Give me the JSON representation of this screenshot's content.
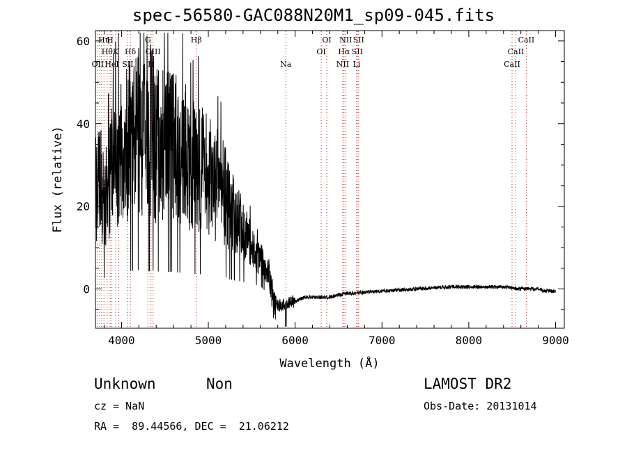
{
  "chart_data": {
    "type": "line",
    "title": "spec-56580-GAC088N20M1_sp09-045.fits",
    "xlabel": "Wavelength (Å)",
    "ylabel": "Flux (relative)",
    "xlim": [
      3700,
      9100
    ],
    "ylim": [
      -9.5,
      62.5
    ],
    "x_ticks": [
      4000,
      5000,
      6000,
      7000,
      8000,
      9000
    ],
    "y_ticks": [
      0,
      20,
      40,
      60
    ],
    "x_tick_labels": [
      "4000",
      "5000",
      "6000",
      "7000",
      "8000",
      "9000"
    ],
    "y_tick_labels": [
      "0",
      "20",
      "40",
      "60"
    ],
    "grid": false,
    "series": [
      {
        "x": [
          3700,
          3750,
          3800,
          3850,
          3900,
          3950,
          4000,
          4050,
          4100,
          4150,
          4200,
          4250,
          4300,
          4340,
          4400,
          4450,
          4500,
          4550,
          4600,
          4650,
          4700,
          4750,
          4800,
          4850,
          4900,
          4950,
          5000,
          5050,
          5100,
          5150,
          5200,
          5250,
          5300,
          5350,
          5400,
          5450,
          5500,
          5550,
          5600,
          5650,
          5700,
          5750,
          5800,
          5850,
          5900,
          5950,
          6000,
          6100,
          6200,
          6300,
          6400,
          6500,
          6600,
          6700,
          6800,
          7000,
          7200,
          7400,
          7600,
          7800,
          8000,
          8200,
          8400,
          8500,
          8600,
          8700,
          8800,
          8900,
          9000
        ],
        "y": [
          24,
          26,
          22,
          25,
          30,
          33,
          34,
          36,
          36,
          37,
          38,
          37,
          32,
          40,
          34,
          36,
          35,
          34,
          36,
          33,
          33,
          32,
          29,
          30,
          30,
          28,
          27,
          26,
          25,
          24,
          23,
          19,
          18,
          16,
          14,
          12,
          10,
          8,
          7,
          6,
          4,
          -3,
          -4,
          -4,
          -4,
          -3,
          -3,
          -2,
          -2,
          -2,
          -2,
          -1.5,
          -1,
          -1,
          -0.8,
          -0.5,
          -0.3,
          0,
          0.3,
          0.5,
          0.5,
          0.5,
          0.5,
          0.3,
          0,
          0,
          0,
          -0.5,
          -0.5
        ]
      }
    ],
    "lines": [
      {
        "x": 3727,
        "label": "OII",
        "row": 3
      },
      {
        "x": 3750,
        "label": "",
        "row": 0
      },
      {
        "x": 3771,
        "label": "",
        "row": 0
      },
      {
        "x": 3798,
        "label": "Hη",
        "row": 1
      },
      {
        "x": 3835,
        "label": "Hθ",
        "row": 2
      },
      {
        "x": 3869,
        "label": "H",
        "row": 1
      },
      {
        "x": 3889,
        "label": "HeI",
        "row": 3
      },
      {
        "x": 3933,
        "label": "K",
        "row": 2
      },
      {
        "x": 3970,
        "label": "",
        "row": 0
      },
      {
        "x": 4072,
        "label": "SII",
        "row": 3
      },
      {
        "x": 4102,
        "label": "Hδ",
        "row": 2
      },
      {
        "x": 4304,
        "label": "G",
        "row": 1
      },
      {
        "x": 4340,
        "label": "H",
        "row": 3
      },
      {
        "x": 4363,
        "label": "OIII",
        "row": 2
      },
      {
        "x": 4861,
        "label": "Hβ",
        "row": 1
      },
      {
        "x": 5893,
        "label": "Na",
        "row": 3
      },
      {
        "x": 6300,
        "label": "OI",
        "row": 2
      },
      {
        "x": 6364,
        "label": "OI",
        "row": 1
      },
      {
        "x": 6548,
        "label": "NII",
        "row": 3
      },
      {
        "x": 6563,
        "label": "Hα",
        "row": 2
      },
      {
        "x": 6583,
        "label": "NII",
        "row": 1
      },
      {
        "x": 6708,
        "label": "Li",
        "row": 3
      },
      {
        "x": 6716,
        "label": "SII",
        "row": 2
      },
      {
        "x": 6731,
        "label": "SII",
        "row": 1
      },
      {
        "x": 8498,
        "label": "CaII",
        "row": 3
      },
      {
        "x": 8542,
        "label": "CaII",
        "row": 2
      },
      {
        "x": 8662,
        "label": "CaII",
        "row": 1
      }
    ]
  },
  "info": {
    "class": "Unknown",
    "subclass": "Non",
    "cz": "cz = NaN",
    "coords": "RA =  89.44566, DEC =  21.06212",
    "survey": "LAMOST DR2",
    "obs_date": "Obs-Date: 20131014"
  }
}
